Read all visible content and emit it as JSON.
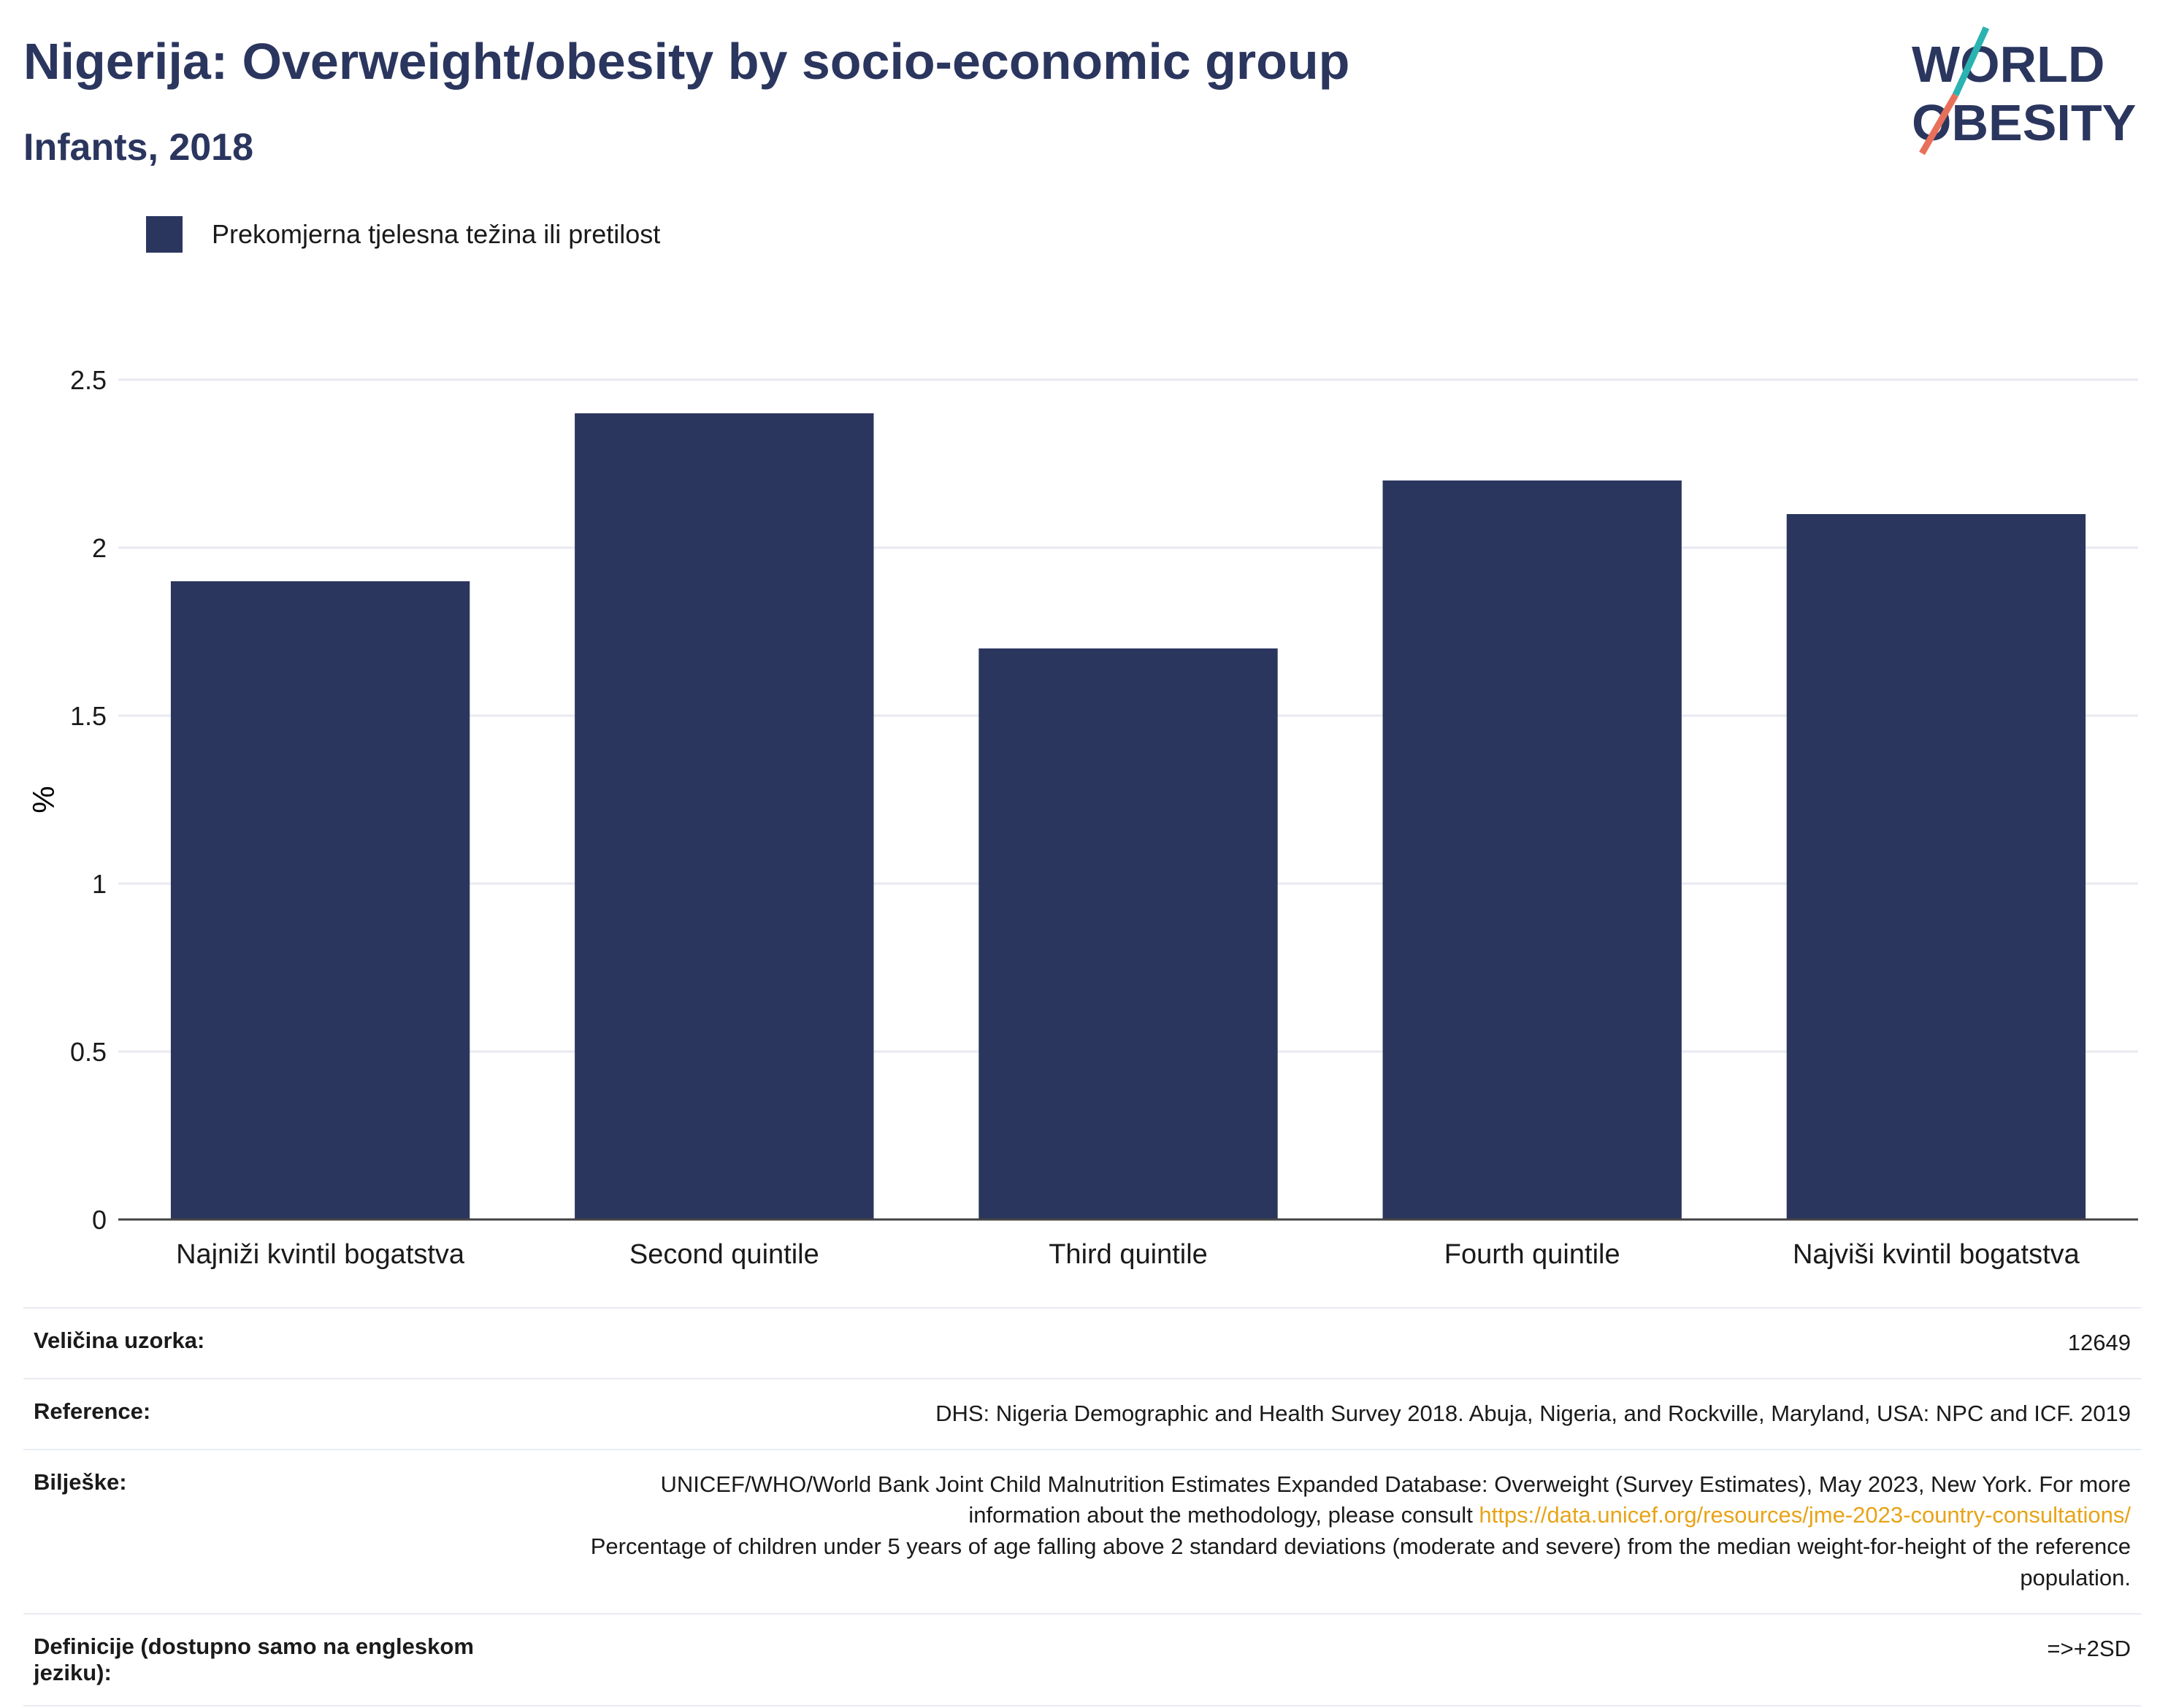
{
  "header": {
    "title": "Nigerija: Overweight/obesity by socio-economic group",
    "subtitle": "Infants, 2018"
  },
  "logo": {
    "line1": "WORLD",
    "line2": "OBESITY"
  },
  "legend": {
    "label": "Prekomjerna tjelesna težina ili pretilost"
  },
  "colors": {
    "bar": "#2b365f",
    "title": "#2b365f",
    "link": "#e8a317",
    "logo_teal": "#2ab3b1",
    "logo_coral": "#e8705a"
  },
  "chart_data": {
    "type": "bar",
    "categories": [
      "Najniži kvintil bogatstva",
      "Second quintile",
      "Third quintile",
      "Fourth quintile",
      "Najviši kvintil bogatstva"
    ],
    "series": [
      {
        "name": "Prekomjerna tjelesna težina ili pretilost",
        "values": [
          1.9,
          2.4,
          1.7,
          2.2,
          2.1
        ]
      }
    ],
    "ylabel": "%",
    "ylim": [
      0,
      2.5
    ],
    "yticks": [
      0,
      0.5,
      1,
      1.5,
      2,
      2.5
    ],
    "ytick_labels": [
      "0",
      "0.5",
      "1",
      "1.5",
      "2",
      "2.5"
    ],
    "grid": true,
    "legend_position": "top-left"
  },
  "info": [
    {
      "label": "Veličina uzorka:",
      "value": "12649"
    },
    {
      "label": "Reference:",
      "value": "DHS: Nigeria Demographic and Health Survey 2018. Abuja, Nigeria, and Rockville, Maryland, USA: NPC and ICF. 2019"
    },
    {
      "label": "Bilješke:",
      "value_part1": "UNICEF/WHO/World Bank Joint Child Malnutrition Estimates Expanded Database: Overweight (Survey Estimates), May 2023, New York. For more information about the methodology, please consult ",
      "link": "https://data.unicef.org/resources/jme-2023-country-consultations/",
      "value_part2": "Percentage of children under 5 years of age falling above 2 standard deviations (moderate and severe) from the median weight-for-height of the reference population."
    },
    {
      "label": "Definicije (dostupno samo na engleskom jeziku):",
      "value": "=>+2SD"
    }
  ]
}
